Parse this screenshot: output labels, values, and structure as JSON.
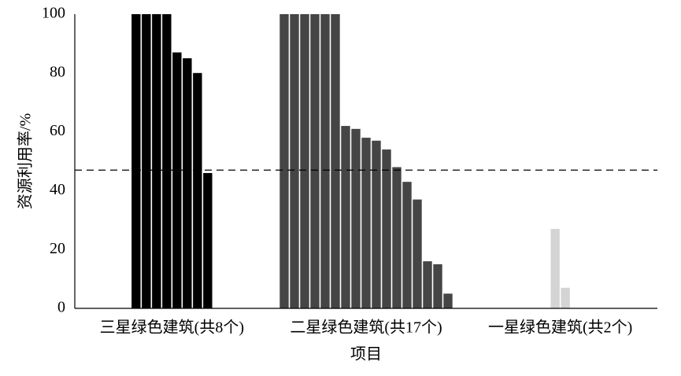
{
  "chart_data": {
    "type": "bar",
    "y_axis_label": "资源利用率/%",
    "x_axis_label": "项目",
    "groups": [
      {
        "label": "三星绿色建筑(共8个)",
        "color": "#000000",
        "values": [
          100,
          100,
          100,
          100,
          87,
          85,
          80,
          46
        ]
      },
      {
        "label": "二星绿色建筑(共17个)",
        "color": "#454545",
        "values": [
          100,
          100,
          100,
          100,
          100,
          100,
          62,
          61,
          58,
          57,
          54,
          48,
          43,
          37,
          16,
          15,
          5
        ]
      },
      {
        "label": "一星绿色建筑(共2个)",
        "color": "#d4d4d4",
        "values": [
          27,
          7
        ]
      }
    ],
    "reference_line": 47,
    "ylim": [
      0,
      100
    ],
    "yticks": [
      0,
      20,
      40,
      60,
      80,
      100
    ],
    "grid": false
  }
}
